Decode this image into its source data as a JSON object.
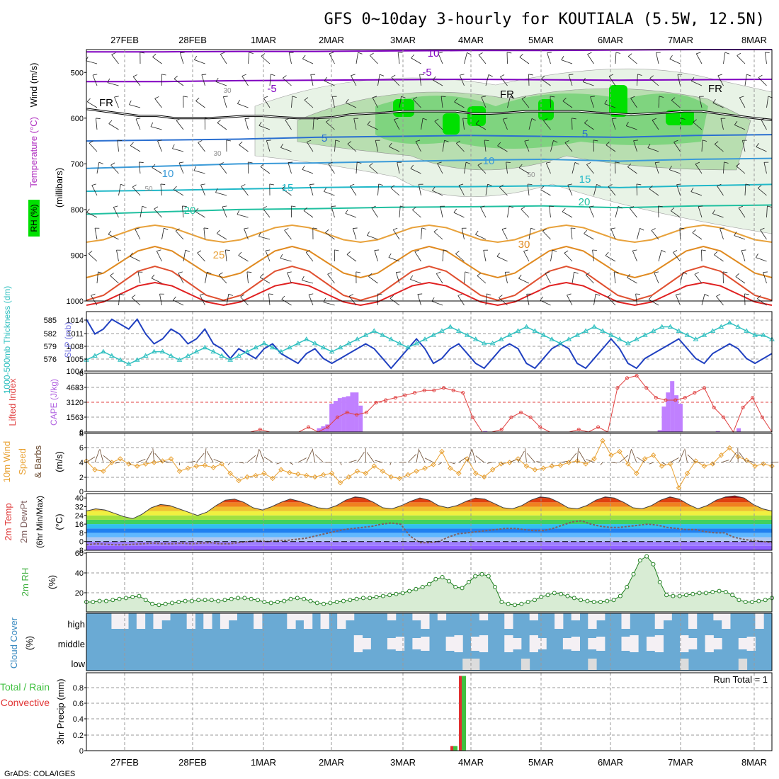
{
  "title": "GFS 0~10day 3-hourly for KOUTIALA (5.5W, 12.5N)",
  "footer": "GrADS: COLA/IGES",
  "dates": [
    "27FEB",
    "28FEB",
    "1MAR",
    "2MAR",
    "3MAR",
    "4MAR",
    "5MAR",
    "6MAR",
    "7MAR",
    "8MAR"
  ],
  "colors": {
    "rh_green": "#00e000",
    "temp_low": "#8000c0",
    "temp_mid": "#2a6fd0",
    "temp_warm": "#e08a20",
    "temp_hot": "#e02020",
    "thickness": "#30c0c0",
    "slp": "#2040c0",
    "cape": "#c080ff",
    "li": "#e04040",
    "wind10": "#e8a030",
    "rh2m": "#40b040",
    "cloud_bg": "#6aaad4",
    "cloud_fill": "#f4f0f4",
    "precip_total": "#40c040",
    "precip_conv": "#e03030"
  },
  "chart_data": [
    {
      "panel": "upper_air",
      "type": "heatmap",
      "ylabel_parts": [
        "Wind (m/s)",
        "Temperature (°C)",
        "(millibars)",
        "RH (%)"
      ],
      "y_ticks": [
        "500",
        "600",
        "700",
        "800",
        "900",
        "1000"
      ],
      "ylim": [
        450,
        1000
      ],
      "contour_labels": [
        "10",
        "-5",
        "-5",
        "FR",
        "FR",
        "FR",
        "5",
        "5",
        "10",
        "10",
        "15",
        "15",
        "20",
        "20",
        "25",
        "30",
        "30",
        "30",
        "50",
        "50"
      ],
      "freezing_level_mb": [
        580,
        585,
        590,
        595,
        595,
        600,
        600,
        600,
        598,
        595,
        595,
        598,
        600,
        600,
        598,
        592,
        590,
        588,
        585,
        585,
        585,
        585,
        590,
        590,
        588,
        585,
        585,
        585,
        585,
        588,
        590,
        592,
        590,
        588,
        585,
        585,
        590,
        595,
        600,
        604
      ],
      "isotherms": [
        {
          "label": "-10",
          "mb": [
            455,
            455,
            454,
            454,
            453,
            452,
            452,
            451,
            450,
            450
          ]
        },
        {
          "label": "-5",
          "mb": [
            520,
            520,
            518,
            517,
            516,
            515,
            516,
            517,
            516,
            515
          ]
        },
        {
          "label": "5",
          "mb": [
            650,
            648,
            646,
            642,
            640,
            638,
            640,
            642,
            638,
            636
          ]
        },
        {
          "label": "10",
          "mb": [
            710,
            705,
            700,
            698,
            695,
            692,
            690,
            694,
            690,
            688
          ]
        },
        {
          "label": "15",
          "mb": [
            760,
            758,
            755,
            752,
            750,
            750,
            748,
            752,
            748,
            745
          ]
        },
        {
          "label": "20",
          "mb": [
            810,
            805,
            800,
            798,
            795,
            794,
            792,
            796,
            792,
            790
          ]
        }
      ]
    },
    {
      "panel": "thickness_slp",
      "type": "line",
      "ylabel_left": "1000-500mb Thickness (dm)",
      "ylabel_right": "SLP (mb)",
      "thickness_ticks": [
        "585",
        "582",
        "579",
        "576"
      ],
      "slp_ticks": [
        "1014",
        "1011",
        "1008",
        "1005",
        "1004"
      ],
      "series": [
        {
          "name": "SLP (mb)",
          "values": [
            1014,
            1011,
            1012,
            1014,
            1013,
            1012,
            1014,
            1011,
            1009,
            1010,
            1012,
            1011,
            1009,
            1010,
            1012,
            1009,
            1008,
            1006,
            1008,
            1007,
            1006,
            1008,
            1009,
            1007,
            1006,
            1005,
            1007,
            1008,
            1006,
            1005,
            1006,
            1007,
            1008,
            1009,
            1008,
            1006,
            1004,
            1006,
            1008,
            1010,
            1008,
            1005,
            1006,
            1008,
            1009,
            1007,
            1005,
            1004,
            1006,
            1008,
            1009,
            1008,
            1005,
            1004,
            1006,
            1008,
            1009,
            1008,
            1005,
            1004,
            1006,
            1008,
            1010,
            1008,
            1005,
            1004,
            1006,
            1007,
            1008,
            1009,
            1010,
            1008,
            1006,
            1005,
            1007,
            1008,
            1009,
            1008,
            1006,
            1005,
            1006,
            1007
          ]
        },
        {
          "name": "Thickness (dm)",
          "values": [
            576,
            577,
            578,
            577,
            576,
            575,
            576,
            577,
            578,
            578,
            577,
            576,
            577,
            578,
            579,
            578,
            577,
            576,
            577,
            578,
            579,
            580,
            579,
            578,
            579,
            580,
            581,
            580,
            579,
            578,
            579,
            580,
            581,
            582,
            583,
            582,
            581,
            580,
            579,
            580,
            581,
            582,
            583,
            584,
            583,
            582,
            581,
            580,
            580,
            581,
            582,
            583,
            584,
            583,
            582,
            581,
            580,
            581,
            582,
            583,
            584,
            583,
            582,
            581,
            580,
            581,
            582,
            583,
            584,
            584,
            583,
            582,
            581,
            582,
            583,
            584,
            585,
            584,
            583,
            582,
            582,
            581
          ]
        }
      ]
    },
    {
      "panel": "cape_li",
      "type": "bar",
      "ylabel_left": "Lifted Index",
      "ylabel_right": "CAPE (J/kg)",
      "li_ticks": [
        "-6",
        "-3",
        "0",
        "3",
        "6"
      ],
      "cape_ticks": [
        "468",
        "312",
        "156"
      ],
      "series": [
        {
          "name": "CAPE (J/kg)",
          "values": [
            0,
            0,
            0,
            0,
            0,
            0,
            0,
            0,
            0,
            0,
            0,
            0,
            0,
            0,
            0,
            0,
            0,
            0,
            0,
            0,
            0,
            0,
            0,
            0,
            0,
            0,
            0,
            0,
            0,
            0,
            0,
            0,
            0,
            0,
            0,
            0,
            0,
            0,
            0,
            0,
            0,
            0,
            0,
            0,
            0,
            0,
            0,
            0,
            0,
            0,
            0,
            0,
            0,
            0,
            0,
            0,
            40,
            60,
            80,
            300,
            330,
            360,
            370,
            380,
            420,
            420,
            280,
            0,
            0,
            0,
            0,
            0,
            0,
            0,
            0,
            0,
            0,
            0,
            0,
            0,
            0,
            0,
            0,
            0,
            0,
            0,
            0,
            0,
            0,
            0,
            0,
            0,
            0,
            0,
            0,
            0,
            10,
            0,
            0,
            0,
            0,
            0,
            0,
            0,
            0,
            0,
            0,
            0,
            0,
            0,
            0,
            0,
            0,
            0,
            0,
            0,
            0,
            0,
            0,
            0,
            0,
            0,
            0,
            0,
            0,
            0,
            0,
            0,
            0,
            0,
            0,
            0,
            0,
            0,
            0,
            0,
            0,
            0,
            20,
            270,
            420,
            540,
            390,
            300,
            0,
            0,
            0,
            0,
            0,
            0,
            0,
            0,
            10,
            0,
            0,
            0,
            0,
            40,
            0,
            0,
            0,
            0,
            0,
            0,
            0,
            0
          ]
        },
        {
          "name": "Lifted Index",
          "values": [
            6,
            6,
            6,
            6,
            6,
            6,
            6,
            6,
            6,
            6,
            6,
            6,
            6,
            6,
            6,
            6,
            6,
            6,
            5.5,
            6,
            6,
            6,
            6,
            5,
            6,
            5,
            3,
            2,
            2.5,
            2,
            0,
            -0.5,
            -1,
            -1.5,
            -2,
            -2.5,
            -2.5,
            -3,
            -2.5,
            -2,
            3,
            6,
            6,
            5.5,
            3,
            2,
            3,
            5,
            6,
            6,
            6,
            5.5,
            6,
            5,
            6,
            -3,
            -5,
            -5.5,
            -3,
            -1,
            -0.5,
            -0.5,
            -1,
            -2,
            -3,
            1,
            3,
            6,
            1,
            -1,
            3,
            6
          ]
        }
      ]
    },
    {
      "panel": "wind10m",
      "type": "line",
      "ylabel": "10m Wind Speed & Barbs (m/s)",
      "y_ticks": [
        "8",
        "6",
        "4",
        "2",
        "0"
      ],
      "ylim": [
        0,
        8
      ],
      "series": [
        {
          "name": "10m Wind Speed",
          "values": [
            4.2,
            3,
            2.8,
            4,
            4.5,
            3.8,
            3.5,
            3.8,
            4,
            4.2,
            4.5,
            2.8,
            3.2,
            3.5,
            3.6,
            3.3,
            3.8,
            2.5,
            1.5,
            2,
            2.2,
            2.5,
            1.8,
            3,
            2.6,
            2.4,
            2.2,
            2,
            2.3,
            2.5,
            1.2,
            2,
            2.8,
            2.5,
            3.5,
            2.8,
            2,
            1.8,
            2.3,
            2.8,
            3.2,
            3.7,
            5.5,
            3.2,
            2.5,
            4.5,
            2.5,
            2,
            3,
            3.8,
            4,
            4.5,
            3.5,
            3,
            3.2,
            3.5,
            3.6,
            4,
            4.2,
            3.8,
            4.5,
            7,
            5,
            5.5,
            3.8,
            2.5,
            4.5,
            5,
            3.5,
            3.8,
            0.5,
            2.5,
            4.2,
            3.5,
            3.8,
            5,
            6,
            4.8,
            4.3,
            3.5,
            3.8,
            3.5
          ]
        }
      ]
    },
    {
      "panel": "temp2m",
      "type": "area",
      "ylabel": "2m Temp, 2m DewPt (6hr Min/Max) (°C)",
      "y_ticks": [
        "40",
        "32",
        "24",
        "16",
        "8",
        "0",
        "-8"
      ],
      "ylim": [
        -8,
        44
      ],
      "series": [
        {
          "name": "2m Temp",
          "values": [
            28,
            30,
            29,
            26,
            23,
            21,
            25,
            31,
            34,
            33,
            30,
            27,
            24,
            27,
            33,
            38,
            39,
            36,
            31,
            29,
            32,
            36,
            39,
            37,
            34,
            31,
            30,
            33,
            38,
            41,
            40,
            36,
            31,
            30,
            33,
            37,
            40,
            38,
            33,
            31,
            33,
            37,
            40,
            39,
            35,
            31,
            30,
            33,
            38,
            41,
            40,
            36,
            31,
            30,
            33,
            38,
            41,
            40,
            36,
            31,
            30,
            33,
            38,
            41,
            39,
            34,
            30,
            33,
            38,
            41,
            42,
            40,
            34,
            30,
            28
          ]
        },
        {
          "name": "2m DewPt",
          "values": [
            -3,
            -2,
            -2.5,
            -3,
            -3,
            -2.5,
            -2,
            -1.5,
            -2,
            -2,
            -1.5,
            -2,
            -1.5,
            -1,
            -2,
            -2,
            -1,
            0,
            1,
            0,
            1,
            1,
            2,
            3,
            5,
            7,
            9,
            11,
            12,
            13,
            14,
            16,
            17,
            16,
            5,
            -1,
            -1,
            0,
            4,
            7,
            8,
            9,
            10,
            11,
            12,
            12,
            11,
            10,
            10,
            12,
            15,
            18,
            19,
            16,
            14,
            13,
            13,
            14,
            15,
            16,
            15,
            13,
            12,
            11,
            11,
            9,
            8,
            8,
            4,
            2,
            1,
            0,
            -1
          ]
        }
      ]
    },
    {
      "panel": "rh2m",
      "type": "area",
      "ylabel": "2m RH (%)",
      "y_ticks": [
        "60",
        "40",
        "20"
      ],
      "ylim": [
        0,
        60
      ],
      "series": [
        {
          "name": "2m RH",
          "values": [
            10,
            10,
            11,
            11,
            12,
            13,
            14,
            15,
            16,
            12,
            8,
            7,
            8,
            9,
            10,
            11,
            11,
            12,
            12,
            12,
            11,
            12,
            13,
            14,
            14,
            13,
            12,
            10,
            9,
            10,
            11,
            13,
            14,
            13,
            11,
            9,
            8,
            9,
            10,
            11,
            12,
            13,
            14,
            14,
            15,
            16,
            17,
            18,
            19,
            21,
            23,
            25,
            28,
            33,
            35,
            31,
            25,
            24,
            30,
            36,
            38,
            36,
            25,
            10,
            8,
            7,
            8,
            10,
            12,
            15,
            17,
            19,
            18,
            16,
            14,
            12,
            11,
            10,
            10,
            11,
            12,
            16,
            25,
            38,
            52,
            56,
            48,
            30,
            17,
            16,
            16,
            17,
            18,
            19,
            19,
            20,
            21,
            20,
            17,
            12,
            10,
            10,
            11,
            12,
            14
          ]
        }
      ]
    },
    {
      "panel": "cloud",
      "type": "bar",
      "ylabel": "Cloud Cover (%)",
      "levels": [
        "high",
        "middle",
        "low"
      ]
    },
    {
      "panel": "precip",
      "type": "bar",
      "ylabel_left": "Total / Rain",
      "ylabel_left2": "Convective",
      "ylabel": "3hr Precip (mm)",
      "run_total": "Run Total = 1",
      "y_ticks": [
        "0.8",
        "0.6",
        "0.4",
        "0.2",
        "0"
      ],
      "ylim": [
        0,
        1.0
      ],
      "series": [
        {
          "name": "Total",
          "values": [
            0.06,
            0.96
          ]
        },
        {
          "name": "Convective",
          "values": [
            0.06,
            0.96
          ]
        }
      ]
    }
  ]
}
